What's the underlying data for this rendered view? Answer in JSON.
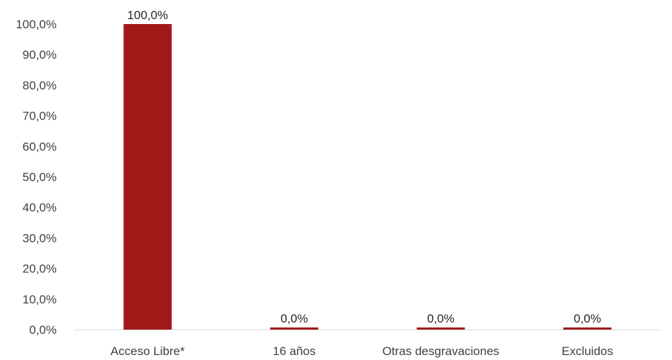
{
  "chart_data": {
    "type": "bar",
    "categories": [
      "Acceso Libre*",
      "16 años",
      "Otras desgravaciones",
      "Excluidos"
    ],
    "series": [
      {
        "values": [
          100.0,
          0.0,
          0.0,
          0.0
        ],
        "data_labels": [
          "100,0%",
          "0,0%",
          "0,0%",
          "0,0%"
        ]
      }
    ],
    "ylim": [
      0,
      100
    ],
    "yticks": [
      0,
      10,
      20,
      30,
      40,
      50,
      60,
      70,
      80,
      90,
      100
    ],
    "ytick_labels": [
      "0,0%",
      "10,0%",
      "20,0%",
      "30,0%",
      "40,0%",
      "50,0%",
      "60,0%",
      "70,0%",
      "80,0%",
      "90,0%",
      "100,0%"
    ],
    "grid": false,
    "legend": "none",
    "colors": {
      "bar": "#A31919",
      "axis": "#d9d9d9",
      "text": "#404040"
    }
  }
}
